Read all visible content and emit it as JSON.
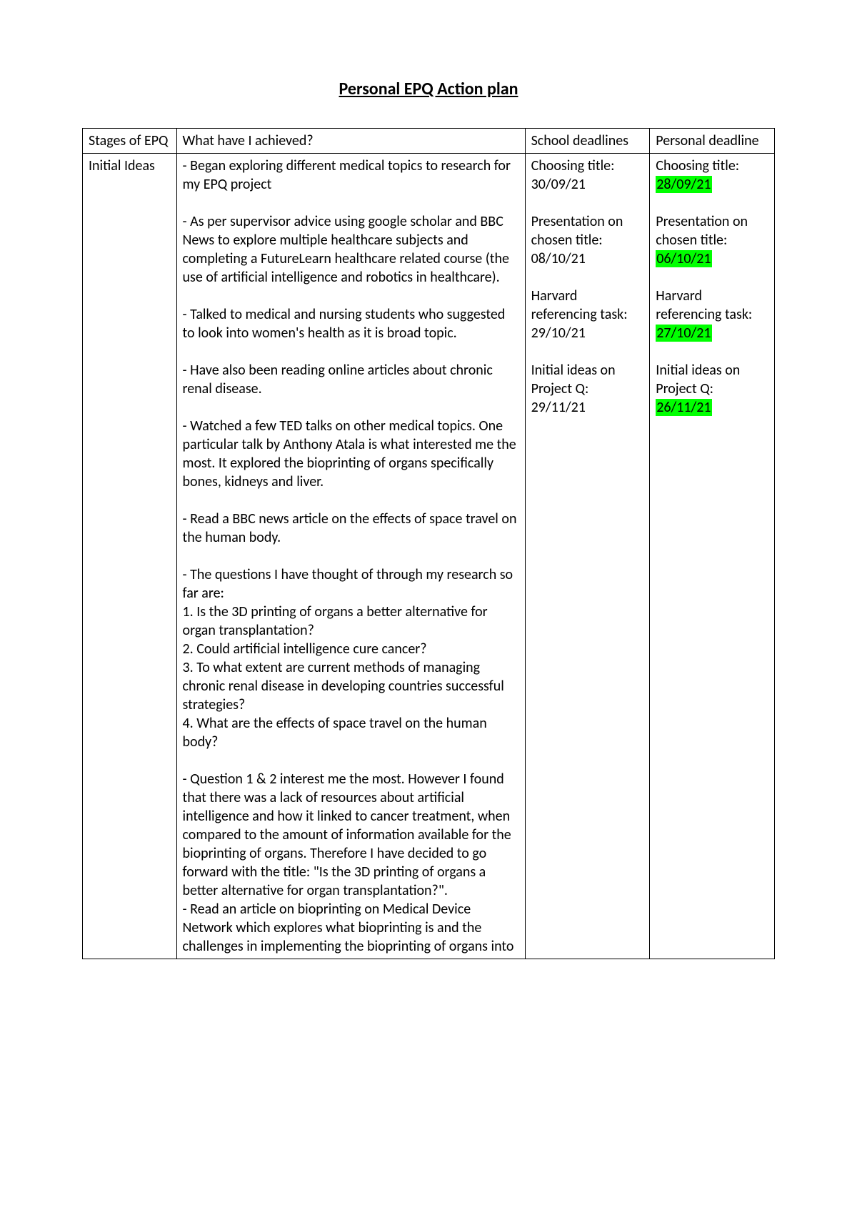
{
  "title": "Personal EPQ Action plan",
  "headers": {
    "stage": "Stages of EPQ",
    "achieved": "What have I achieved?",
    "school": "School deadlines",
    "personal": "Personal deadline"
  },
  "row": {
    "stage": "Initial Ideas",
    "paras": {
      "p1": "- Began exploring different medical topics to research for my EPQ project",
      "p2": "- As per supervisor advice using google scholar and BBC News to explore multiple healthcare subjects and completing a FutureLearn healthcare related course (the use of artificial intelligence and robotics in healthcare).",
      "p3": "- Talked to medical and nursing students who suggested to look into women's health as it is broad topic.",
      "p4": "- Have also been reading online articles about chronic renal disease.",
      "p5": "- Watched a few TED talks on other medical topics. One particular talk by Anthony Atala is what interested me the most. It explored the bioprinting of organs specifically bones, kidneys and liver.",
      "p6": "- Read a BBC news article on the effects of space travel on the human body.",
      "p7a": "- The questions I have thought of through my research so far are:",
      "p7b": "1. Is the 3D printing of organs a better alternative for organ transplantation?",
      "p7c": "2. Could artificial intelligence cure cancer?",
      "p7d": "3. To what extent are current methods of managing chronic renal disease in developing countries successful strategies?",
      "p7e": "4. What are the effects of space travel on the human body?",
      "p8a": "- Question 1 & 2 interest me the most. However I found that there was a lack of resources about artificial intelligence and how it linked to cancer treatment, when compared to the amount of information available for the bioprinting of organs. Therefore I have decided to go forward with the title: \"Is the 3D printing of organs a better alternative for organ transplantation?\".",
      "p8b": "- Read an article on bioprinting on Medical Device Network which explores what bioprinting is and the challenges in implementing the bioprinting of organs into"
    },
    "school": {
      "d1_label": "Choosing title:",
      "d1_date": "30/09/21",
      "d2_label": "Presentation on chosen title:",
      "d2_date": "08/10/21",
      "d3_label": "Harvard referencing task:",
      "d3_date": "29/10/21",
      "d4_label": "Initial ideas on Project Q:",
      "d4_date": "29/11/21"
    },
    "personal": {
      "d1_label": "Choosing title:",
      "d1_date": "28/09/21",
      "d2_label": "Presentation on chosen title:",
      "d2_date": "06/10/21",
      "d3_label": "Harvard referencing task:",
      "d3_date": "27/10/21",
      "d4_label": "Initial ideas on Project Q:",
      "d4_date": "26/11/21"
    }
  },
  "colors": {
    "highlight": "#00ff00",
    "border": "#000000",
    "background": "#ffffff",
    "text": "#000000"
  },
  "typography": {
    "title_fontsize": 24,
    "body_fontsize": 20,
    "font_family": "Calibri"
  }
}
